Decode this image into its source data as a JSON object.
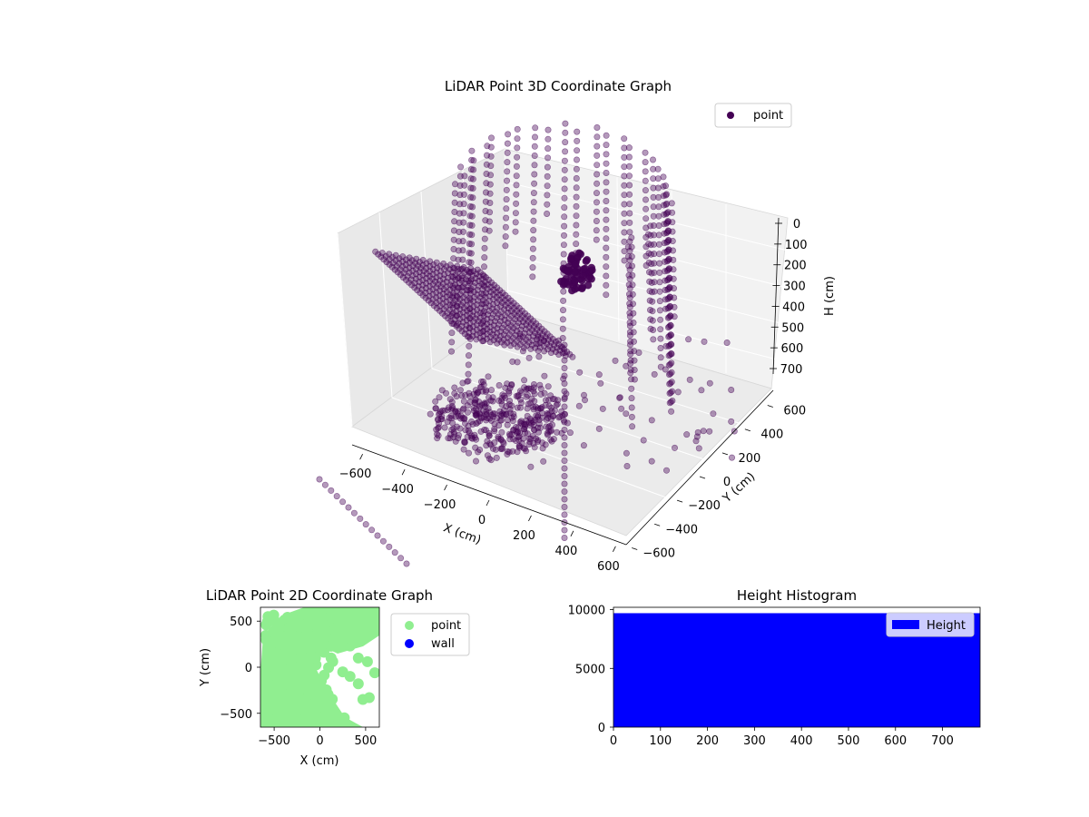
{
  "chart_data": [
    {
      "type": "scatter",
      "projection": "3d",
      "title": "LiDAR Point 3D Coordinate Graph",
      "xlabel": "X (cm)",
      "ylabel": "Y (cm)",
      "zlabel": "H (cm)",
      "xlim": [
        -650,
        650
      ],
      "ylim": [
        -650,
        650
      ],
      "zlim": [
        780,
        0
      ],
      "xticks": [
        -600,
        -400,
        -200,
        0,
        200,
        400,
        600
      ],
      "yticks": [
        -600,
        -400,
        -200,
        0,
        200,
        400,
        600
      ],
      "zticks": [
        0,
        100,
        200,
        300,
        400,
        500,
        600,
        700
      ],
      "grid": true,
      "legend": {
        "position": "top-right",
        "entries": [
          {
            "name": "point",
            "color": "#440154"
          }
        ]
      },
      "series": [
        {
          "name": "point",
          "color": "#440154",
          "alpha": 0.4
        }
      ]
    },
    {
      "type": "scatter",
      "title": "LiDAR Point 2D Coordinate Graph",
      "xlabel": "X (cm)",
      "ylabel": "Y (cm)",
      "xlim": [
        -650,
        650
      ],
      "ylim": [
        -650,
        650
      ],
      "xticks": [
        -500,
        0,
        500
      ],
      "yticks": [
        -500,
        0,
        500
      ],
      "legend": {
        "position": "outside-right",
        "entries": [
          {
            "name": "point",
            "color": "#90ee90"
          },
          {
            "name": "wall",
            "color": "#0000ff"
          }
        ]
      },
      "series": [
        {
          "name": "point",
          "color": "#90ee90"
        },
        {
          "name": "wall",
          "color": "#0000ff"
        }
      ]
    },
    {
      "type": "bar",
      "title": "Height Histogram",
      "xlim": [
        0,
        780
      ],
      "ylim": [
        0,
        10200
      ],
      "xticks": [
        0,
        100,
        200,
        300,
        400,
        500,
        600,
        700
      ],
      "yticks": [
        0,
        5000,
        10000
      ],
      "bins": [
        {
          "x0": 0,
          "x1": 780,
          "count": 9700
        }
      ],
      "legend": {
        "position": "top-right",
        "entries": [
          {
            "name": "Height",
            "color": "#0000ff"
          }
        ]
      },
      "series": [
        {
          "name": "Height",
          "color": "#0000ff"
        }
      ]
    }
  ]
}
